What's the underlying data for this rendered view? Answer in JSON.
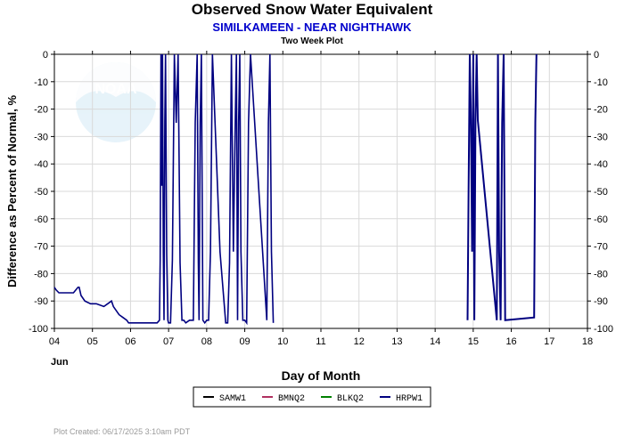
{
  "header": {
    "title": "Observed Snow Water Equivalent",
    "subtitle": "SIMILKAMEEN - NEAR NIGHTHAWK",
    "plot_label": "Two Week Plot"
  },
  "watermark": "NOAA",
  "footer": {
    "created": "Plot Created: 06/17/2025 3:10am PDT"
  },
  "chart_data": {
    "type": "line",
    "title": "Observed Snow Water Equivalent",
    "subtitle": "SIMILKAMEEN - NEAR NIGHTHAWK",
    "xlabel": "Day of Month",
    "x_month_label": "Jun",
    "ylabel": "Difference as Percent of Normal, %",
    "xlim": [
      4,
      18
    ],
    "ylim": [
      -100,
      0
    ],
    "x_ticks": [
      "04",
      "05",
      "06",
      "07",
      "08",
      "09",
      "10",
      "11",
      "12",
      "13",
      "14",
      "15",
      "16",
      "17",
      "18"
    ],
    "y_ticks": [
      0,
      -10,
      -20,
      -30,
      -40,
      -50,
      -60,
      -70,
      -80,
      -90,
      -100
    ],
    "grid": true,
    "legend_position": "bottom-center",
    "legend": [
      {
        "name": "SAMW1",
        "color": "#000000"
      },
      {
        "name": "BMNQ2",
        "color": "#b03060"
      },
      {
        "name": "BLKQ2",
        "color": "#008000"
      },
      {
        "name": "HRPW1",
        "color": "#000080"
      }
    ],
    "series": [
      {
        "name": "HRPW1",
        "color": "#000080",
        "x": [
          4.0,
          4.05,
          4.12,
          4.2,
          4.35,
          4.5,
          4.62,
          4.65,
          4.7,
          4.8,
          4.95,
          5.1,
          5.3,
          5.4,
          5.5,
          5.55,
          5.6,
          5.7,
          5.8,
          5.9,
          5.95,
          6.0,
          6.05,
          6.15,
          6.3,
          6.5,
          6.7,
          6.76,
          6.78,
          6.8,
          6.82,
          6.84,
          6.86,
          6.88,
          6.9,
          6.92,
          6.95,
          6.98,
          7.0,
          7.05,
          7.1,
          7.15,
          7.2,
          7.25,
          7.3,
          7.35,
          7.4,
          7.45,
          7.55,
          7.65,
          7.7,
          7.75,
          7.78,
          7.8,
          7.83,
          7.86,
          7.9,
          7.95,
          8.0,
          8.05,
          8.1,
          8.15,
          8.35,
          8.5,
          8.55,
          8.6,
          8.65,
          8.7,
          8.75,
          8.78,
          8.81,
          8.84,
          8.87,
          8.9,
          8.95,
          9.0,
          9.05,
          9.1,
          9.15,
          9.58,
          9.62,
          9.66,
          9.7,
          9.75
        ],
        "y": [
          -85,
          -86,
          -87,
          -87,
          -87,
          -87,
          -85,
          -85,
          -88,
          -90,
          -91,
          -91,
          -92,
          -91,
          -90,
          -92,
          -93,
          -95,
          -96,
          -97,
          -98,
          -98,
          -98,
          -98,
          -98,
          -98,
          -98,
          -97,
          -75,
          0,
          -48,
          0,
          -72,
          -97,
          -25,
          0,
          -73,
          -97,
          -98,
          -98,
          -75,
          0,
          -25,
          0,
          -76,
          -97,
          -97,
          -98,
          -97,
          -97,
          -25,
          0,
          -76,
          -97,
          -25,
          0,
          -97,
          -98,
          -97,
          -97,
          -72,
          0,
          -72,
          -98,
          -98,
          -76,
          0,
          -72,
          -25,
          0,
          -97,
          -25,
          0,
          -72,
          -97,
          -97,
          -98,
          -25,
          0,
          -97,
          -25,
          0,
          -72,
          -98
        ]
      },
      {
        "name": "HRPW1",
        "color": "#000080",
        "x": [
          14.85,
          14.88,
          14.91,
          14.94,
          14.97,
          15.0,
          15.03,
          15.06,
          15.09,
          15.12,
          15.62,
          15.65,
          15.68,
          15.72,
          15.76,
          15.8,
          15.84,
          16.6,
          16.63,
          16.66
        ],
        "y": [
          -97,
          -48,
          0,
          -24,
          -72,
          0,
          -97,
          -24,
          0,
          -24,
          -97,
          0,
          -72,
          -97,
          -25,
          0,
          -97,
          -96,
          -25,
          0
        ]
      }
    ]
  }
}
